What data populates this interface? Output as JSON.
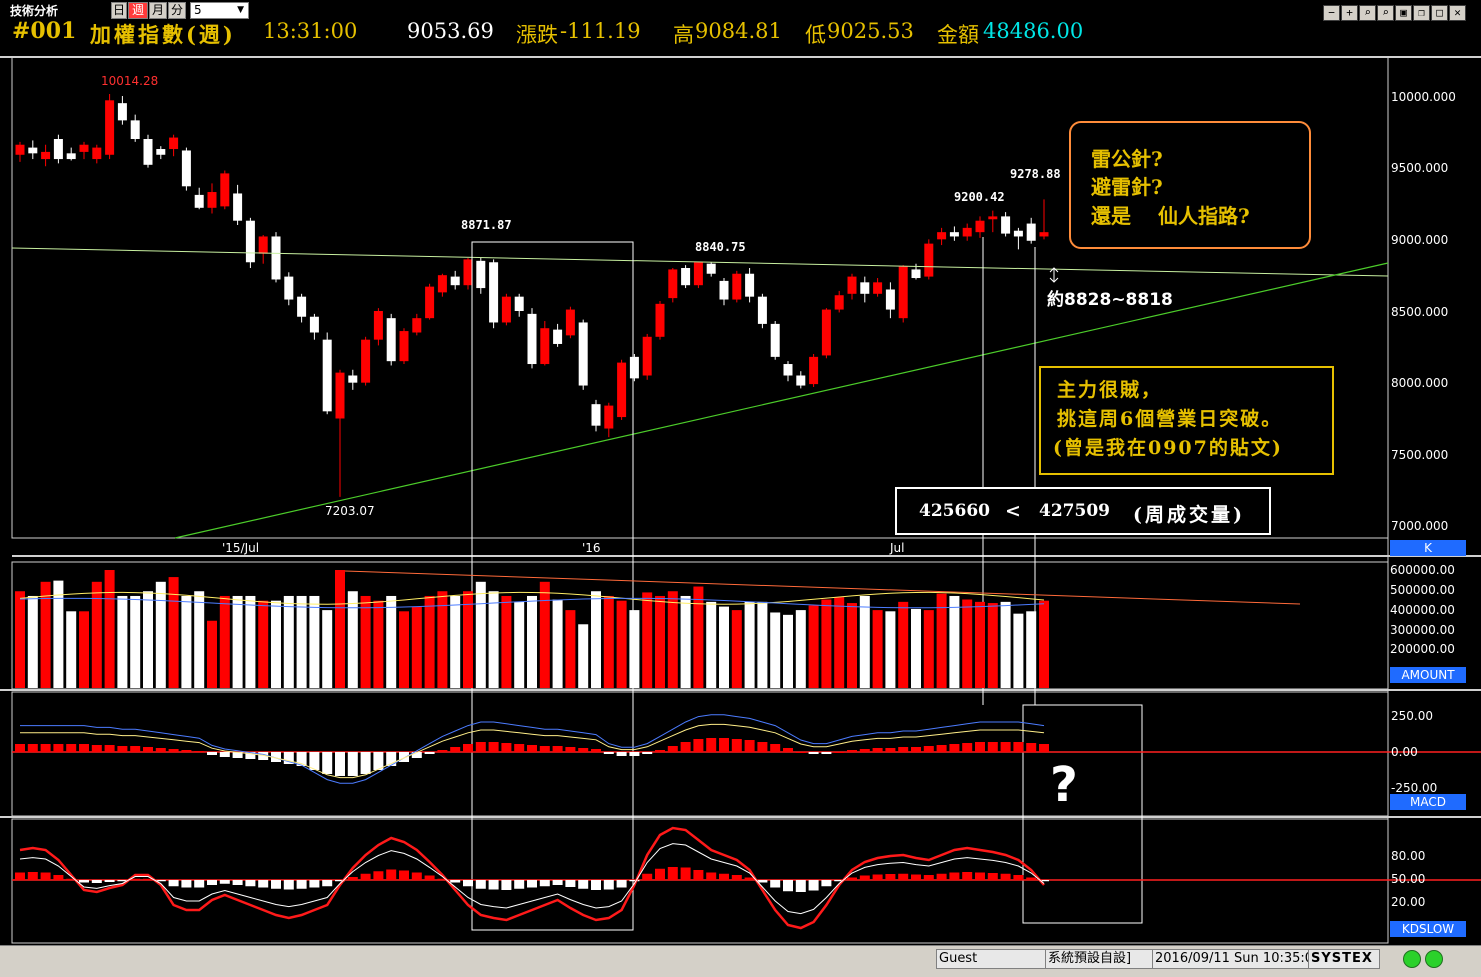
{
  "toolbar": {
    "app_label": "技術分析",
    "tabs": [
      "日",
      "週",
      "月",
      "分"
    ],
    "interval_value": "5"
  },
  "header": {
    "code": "#001",
    "name": "加權指數(週)",
    "time": "13:31:00",
    "price": "9053.69",
    "change_label": "漲跌",
    "change": "-111.19",
    "high_label": "高",
    "high": "9084.81",
    "low_label": "低",
    "low": "9025.53",
    "amount_label": "金額",
    "amount": "48486.00"
  },
  "window_buttons": [
    "−",
    "+",
    "⌕",
    "⌕",
    "▣",
    "❐",
    "□",
    "✕"
  ],
  "price_panel": {
    "label": "K",
    "scale": [
      "10000.000",
      "9500.000",
      "9000.000",
      "8500.000",
      "8000.000",
      "7500.000",
      "7000.000"
    ],
    "time_labels": [
      "'15/Jul",
      "'16",
      "Jul"
    ],
    "peak_labels": {
      "high_10014": "10014.28",
      "low_7203": "7203.07",
      "high_8871": "8871.87",
      "high_8840": "8840.75",
      "high_9200": "9200.42",
      "high_9278": "9278.88"
    },
    "target_note": "約8828~8818"
  },
  "amount_panel": {
    "label": "AMOUNT",
    "scale": [
      "600000.00",
      "500000.00",
      "400000.00",
      "300000.00",
      "200000.00"
    ]
  },
  "macd_panel": {
    "label": "MACD",
    "scale": [
      "250.00",
      "0.00",
      "-250.00"
    ],
    "question": "?"
  },
  "kd_panel": {
    "label": "KDSLOW",
    "scale": [
      "80.00",
      "50.00",
      "20.00"
    ]
  },
  "annotations": {
    "box1_lines": [
      "雷公針?",
      "避雷針?",
      "還是　 仙人指路?"
    ],
    "box2_lines": [
      "主力很賊，",
      "挑這周6個營業日突破。",
      "(曾是我在0907的貼文)"
    ],
    "volume_compare": {
      "left": "425660",
      "op": "<",
      "right": "427509",
      "label": "(周成交量)"
    }
  },
  "status_bar": {
    "user": "Guest",
    "layout": "系統預設自設]",
    "datetime": "2016/09/11 Sun 10:35:0",
    "brand": "SYSTEX"
  },
  "colors": {
    "up": "#ff0000",
    "down": "#ffffff",
    "accent_gold": "#e6c000",
    "orange_border": "#ff8c3a"
  }
}
